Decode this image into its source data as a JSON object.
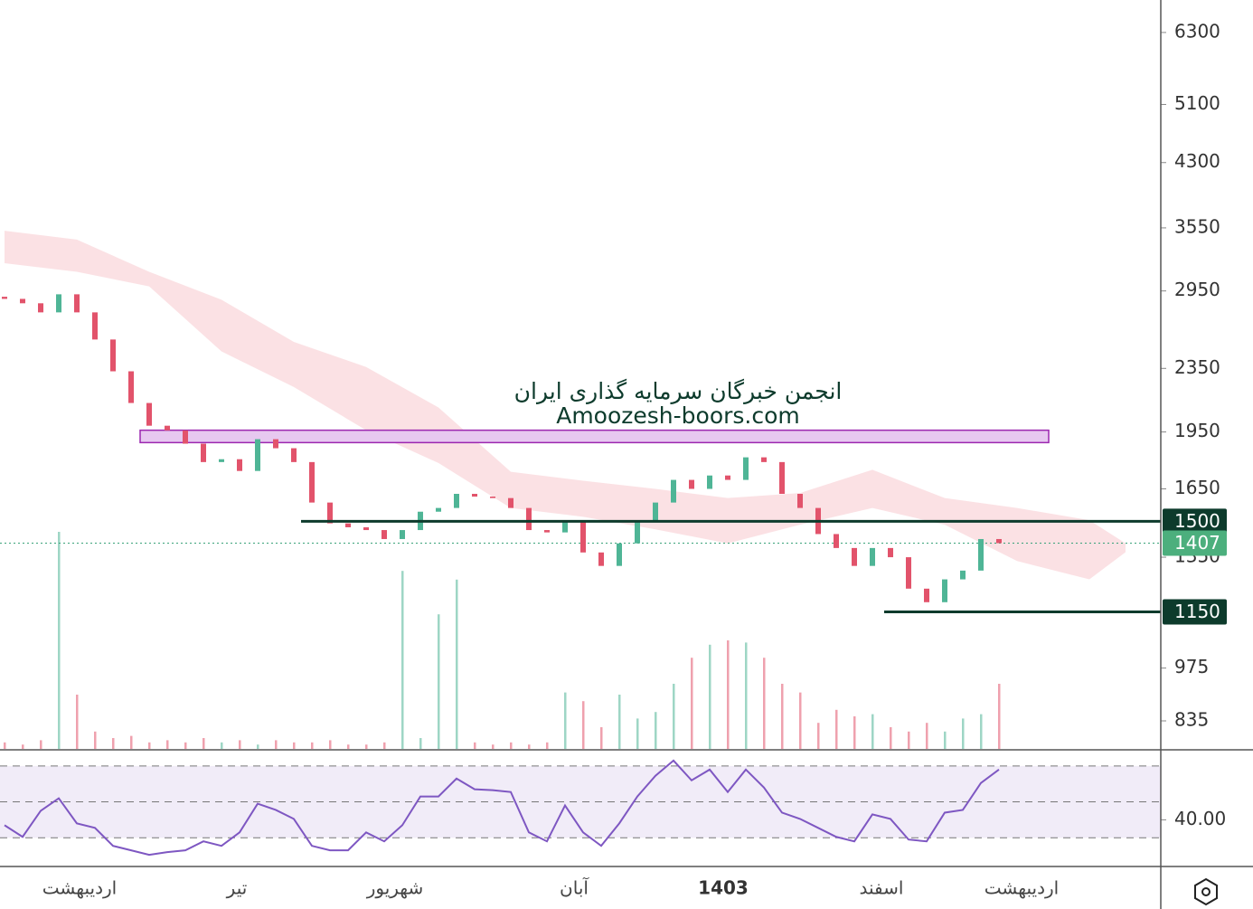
{
  "chart_data": {
    "type": "candlestick",
    "y_scale": "log",
    "ylim": [
      767,
      6930
    ],
    "yticks": [
      6300,
      5100,
      4300,
      3550,
      2950,
      2350,
      1950,
      1650,
      1350,
      975,
      835
    ],
    "x_labels": [
      "اردیبهشت",
      "تیر",
      "شهریور",
      "آبان",
      "1403",
      "اسفند",
      "اردیبهشت"
    ],
    "open": [
      2900,
      2882,
      2845,
      2770,
      2921,
      2770,
      2558,
      2330,
      2123,
      1986,
      1959,
      1884,
      1785,
      1800,
      1739,
      1909,
      1859,
      1785,
      1585,
      1491,
      1474,
      1462,
      1424,
      1462,
      1543,
      1560,
      1626,
      1613,
      1606,
      1560,
      1462,
      1452,
      1505,
      1369,
      1316,
      1406,
      1505,
      1585,
      1694,
      1650,
      1716,
      1694,
      1810,
      1785,
      1626,
      1560,
      1445,
      1387,
      1316,
      1387,
      1350,
      1231,
      1183,
      1265,
      1298,
      1424
    ],
    "close": [
      2882,
      2845,
      2770,
      2921,
      2770,
      2558,
      2330,
      2123,
      1986,
      1959,
      1884,
      1785,
      1800,
      1739,
      1909,
      1859,
      1785,
      1585,
      1491,
      1474,
      1462,
      1424,
      1462,
      1543,
      1560,
      1626,
      1613,
      1606,
      1560,
      1462,
      1452,
      1505,
      1369,
      1316,
      1406,
      1505,
      1585,
      1694,
      1650,
      1716,
      1694,
      1810,
      1785,
      1626,
      1560,
      1445,
      1387,
      1316,
      1387,
      1350,
      1231,
      1183,
      1265,
      1298,
      1424,
      1407
    ],
    "up_color": "#4fb596",
    "down_color": "#e2536b",
    "volume": [
      3,
      2,
      4,
      100,
      25,
      8,
      5,
      6,
      3,
      4,
      3,
      5,
      3,
      4,
      2,
      4,
      3,
      3,
      4,
      2,
      2,
      3,
      82,
      5,
      62,
      78,
      3,
      2,
      3,
      2,
      3,
      26,
      22,
      10,
      25,
      14,
      17,
      30,
      42,
      48,
      50,
      49,
      42,
      30,
      26,
      12,
      18,
      15,
      16,
      10,
      8,
      12,
      8,
      14,
      16,
      30
    ],
    "cloud": {
      "x": [
        0,
        4,
        8,
        12,
        16,
        20,
        24,
        28,
        32,
        36,
        40,
        44,
        48,
        52,
        56,
        60,
        62
      ],
      "top": [
        3520,
        3430,
        3120,
        2875,
        2540,
        2360,
        2095,
        1735,
        1690,
        1650,
        1606,
        1630,
        1745,
        1606,
        1560,
        1505,
        1406
      ],
      "bottom": [
        3200,
        3120,
        2990,
        2470,
        2225,
        1960,
        1780,
        1560,
        1520,
        1465,
        1406,
        1485,
        1560,
        1485,
        1335,
        1265,
        1370
      ],
      "color": "#fadadd"
    },
    "zone": [
      1890,
      1960
    ],
    "levels": [
      1500,
      1150
    ],
    "last": 1407,
    "watermark": [
      "انجمن خبرگان سرمایه گذاری ایران",
      "Amoozesh-boors.com"
    ],
    "rsi": {
      "values": [
        37,
        30.5,
        45,
        52,
        38,
        35.5,
        25.5,
        23,
        20.5,
        22,
        23,
        28,
        25.5,
        33,
        49,
        45.5,
        40.5,
        25.5,
        23,
        23,
        33,
        28,
        37,
        53,
        53,
        63,
        57,
        56.5,
        55.5,
        33,
        28,
        48,
        33,
        25.5,
        38,
        53,
        64.5,
        73,
        62,
        68,
        55.5,
        68,
        58,
        44,
        40.5,
        35.5,
        30.5,
        28,
        43,
        40.5,
        29,
        28,
        44,
        45.5,
        60.5,
        68
      ],
      "ylim": [
        14,
        79
      ],
      "yticks": [
        {
          "value": 40,
          "label": "40.00"
        }
      ],
      "levels": [
        30,
        50,
        70
      ],
      "color": "#7e57c2"
    }
  }
}
